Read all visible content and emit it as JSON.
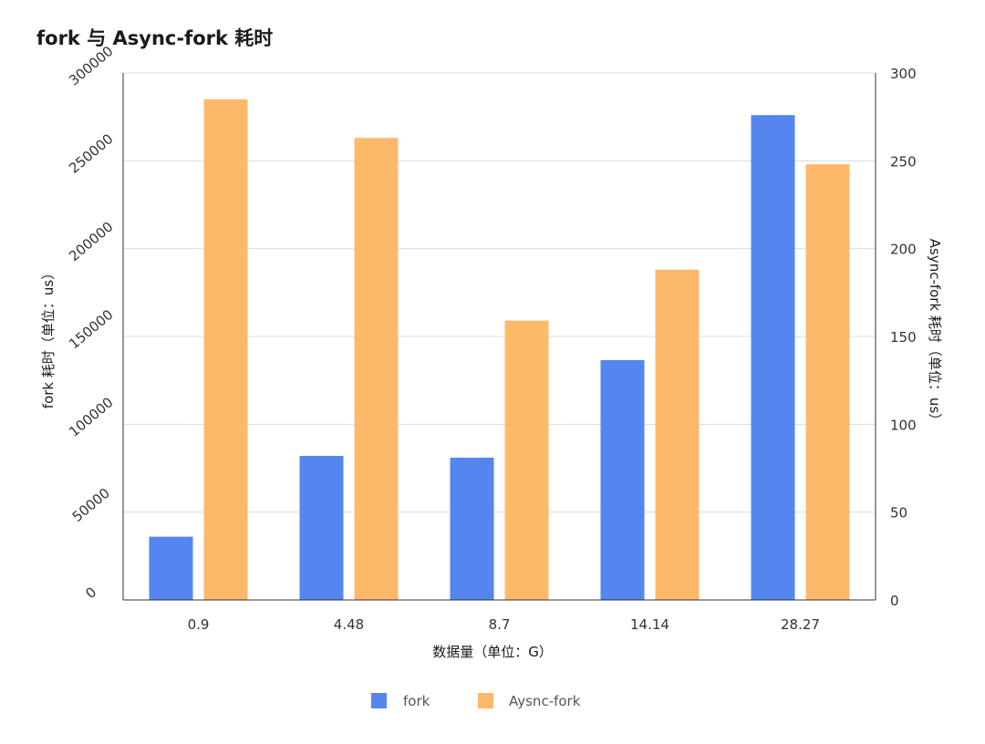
{
  "chart_data": {
    "type": "bar",
    "title": "fork 与 Async-fork 耗时",
    "xlabel": "数据量（单位：G）",
    "ylabel_left": "fork 耗时（单位：us）",
    "ylabel_right": "Async-fork 耗时（单位：us）",
    "categories": [
      "0.9",
      "4.48",
      "8.7",
      "14.14",
      "28.27"
    ],
    "left_axis": {
      "min": 0,
      "max": 300000,
      "ticks": [
        "0",
        "50000",
        "100000",
        "150000",
        "200000",
        "250000",
        "300000"
      ]
    },
    "right_axis": {
      "min": 0,
      "max": 300,
      "ticks": [
        "0",
        "50",
        "100",
        "150",
        "200",
        "250",
        "300"
      ]
    },
    "series": [
      {
        "name": "fork",
        "axis": "left",
        "color": "#5586f0",
        "values": [
          36000,
          82000,
          81000,
          136500,
          276000
        ]
      },
      {
        "name": "Aysnc-fork",
        "axis": "right",
        "color": "#fdb96a",
        "values": [
          285,
          263,
          159,
          188,
          248
        ]
      }
    ],
    "grid": true,
    "legend_position": "bottom-center"
  }
}
